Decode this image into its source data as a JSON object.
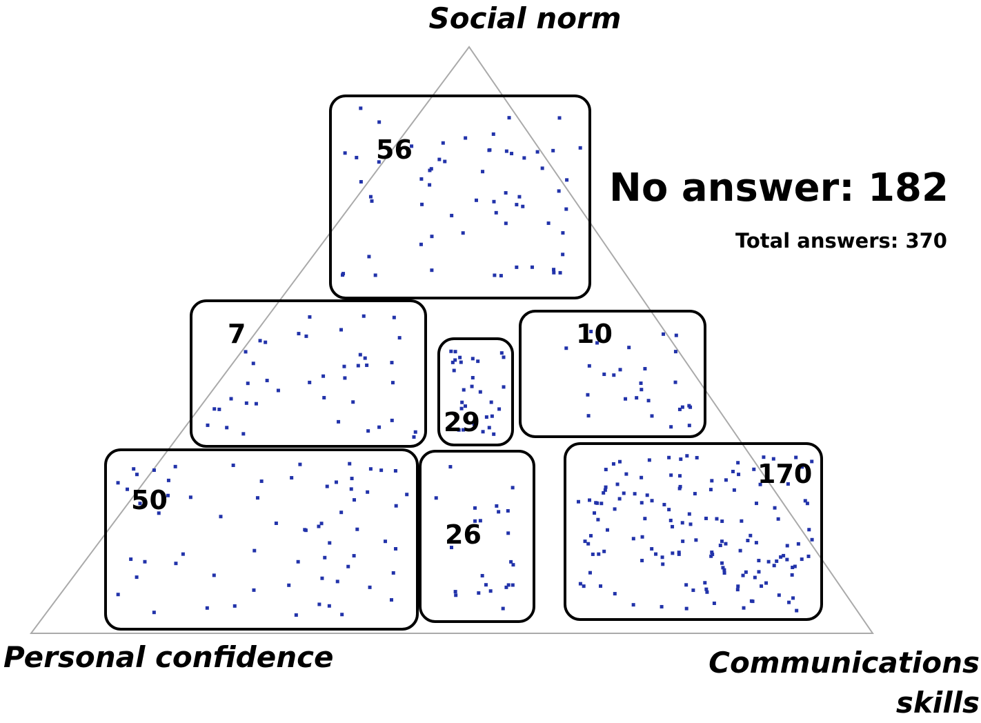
{
  "axes": {
    "top": "Social norm",
    "left": "Personal confidence",
    "right": "Communications skills"
  },
  "summary": {
    "no_answer": "No answer: 182",
    "total": "Total answers: 370"
  },
  "regions": [
    {
      "count": 56
    },
    {
      "count": 7
    },
    {
      "count": 29
    },
    {
      "count": 10
    },
    {
      "count": 50
    },
    {
      "count": 26
    },
    {
      "count": 170
    }
  ]
}
